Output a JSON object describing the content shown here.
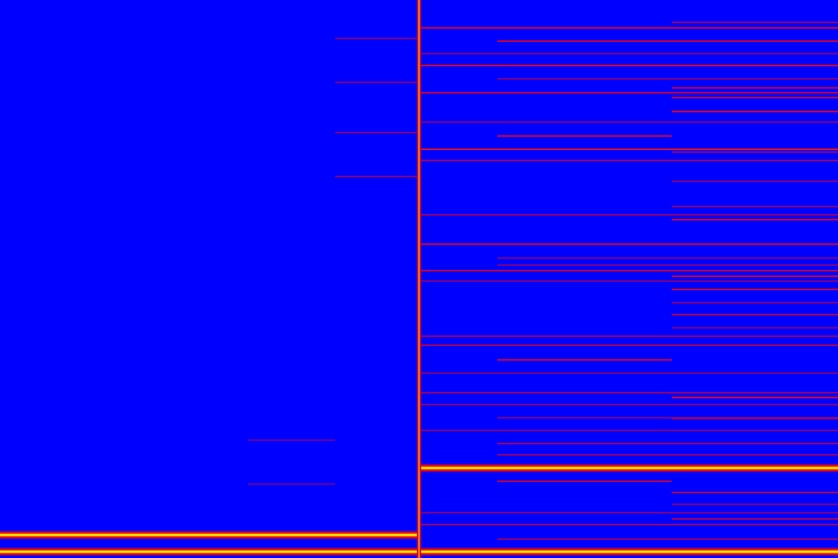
{
  "chart_data": {
    "type": "spectrogram",
    "xlim": [
      0,
      1200
    ],
    "ylim": [
      0,
      800
    ],
    "zlim": [
      0,
      1
    ],
    "tick_labels": false,
    "grid": false,
    "segments": [
      {
        "x0": 0,
        "x1": 600,
        "y": 33,
        "intensity": 1
      },
      {
        "x0": 0,
        "x1": 1200,
        "y": 9,
        "intensity": 1
      },
      {
        "x0": 600,
        "x1": 1200,
        "y": 129,
        "intensity": 1
      },
      {
        "x0": 480,
        "x1": 600,
        "y": 745,
        "intensity": 0.3
      },
      {
        "x0": 480,
        "x1": 600,
        "y": 682,
        "intensity": 0.3
      },
      {
        "x0": 480,
        "x1": 600,
        "y": 610,
        "intensity": 0.3
      },
      {
        "x0": 480,
        "x1": 600,
        "y": 547,
        "intensity": 0.3
      },
      {
        "x0": 355,
        "x1": 480,
        "y": 169,
        "intensity": 0.25
      },
      {
        "x0": 355,
        "x1": 480,
        "y": 106,
        "intensity": 0.25
      },
      {
        "x0": 600,
        "x1": 1200,
        "y": 760,
        "intensity": 0.5
      },
      {
        "x0": 600,
        "x1": 1200,
        "y": 706,
        "intensity": 0.5
      },
      {
        "x0": 600,
        "x1": 1200,
        "y": 667,
        "intensity": 0.45
      },
      {
        "x0": 600,
        "x1": 1200,
        "y": 586,
        "intensity": 0.55
      },
      {
        "x0": 600,
        "x1": 1200,
        "y": 450,
        "intensity": 0.5
      },
      {
        "x0": 600,
        "x1": 1200,
        "y": 412,
        "intensity": 0.45
      },
      {
        "x0": 600,
        "x1": 1200,
        "y": 723,
        "intensity": 0.3
      },
      {
        "x0": 600,
        "x1": 1200,
        "y": 625,
        "intensity": 0.3
      },
      {
        "x0": 600,
        "x1": 1200,
        "y": 570,
        "intensity": 0.35
      },
      {
        "x0": 600,
        "x1": 1200,
        "y": 492,
        "intensity": 0.35
      },
      {
        "x0": 600,
        "x1": 1200,
        "y": 397,
        "intensity": 0.3
      },
      {
        "x0": 600,
        "x1": 1200,
        "y": 318,
        "intensity": 0.35
      },
      {
        "x0": 600,
        "x1": 1200,
        "y": 305,
        "intensity": 0.4
      },
      {
        "x0": 600,
        "x1": 1200,
        "y": 265,
        "intensity": 0.3
      },
      {
        "x0": 600,
        "x1": 1200,
        "y": 237,
        "intensity": 0.35
      },
      {
        "x0": 600,
        "x1": 1200,
        "y": 220,
        "intensity": 0.3
      },
      {
        "x0": 600,
        "x1": 1200,
        "y": 183,
        "intensity": 0.3
      },
      {
        "x0": 600,
        "x1": 1200,
        "y": 65,
        "intensity": 0.3
      },
      {
        "x0": 600,
        "x1": 1200,
        "y": 48,
        "intensity": 0.35
      },
      {
        "x0": 712,
        "x1": 1200,
        "y": 741,
        "intensity": 0.5
      },
      {
        "x0": 712,
        "x1": 1200,
        "y": 687,
        "intensity": 0.3
      },
      {
        "x0": 712,
        "x1": 1200,
        "y": 430,
        "intensity": 0.3
      },
      {
        "x0": 712,
        "x1": 1200,
        "y": 420,
        "intensity": 0.3
      },
      {
        "x0": 712,
        "x1": 1200,
        "y": 201,
        "intensity": 0.3
      },
      {
        "x0": 712,
        "x1": 1200,
        "y": 164,
        "intensity": 0.35
      },
      {
        "x0": 712,
        "x1": 1200,
        "y": 148,
        "intensity": 0.35
      },
      {
        "x0": 712,
        "x1": 1200,
        "y": 27,
        "intensity": 0.35
      },
      {
        "x0": 712,
        "x1": 962,
        "y": 605,
        "intensity": 0.5
      },
      {
        "x0": 712,
        "x1": 962,
        "y": 284,
        "intensity": 0.5
      },
      {
        "x0": 712,
        "x1": 962,
        "y": 110,
        "intensity": 0.45
      },
      {
        "x0": 962,
        "x1": 1200,
        "y": 768,
        "intensity": 0.35
      },
      {
        "x0": 962,
        "x1": 1200,
        "y": 674,
        "intensity": 0.45
      },
      {
        "x0": 962,
        "x1": 1200,
        "y": 660,
        "intensity": 0.45
      },
      {
        "x0": 962,
        "x1": 1200,
        "y": 640,
        "intensity": 0.5
      },
      {
        "x0": 962,
        "x1": 1200,
        "y": 582,
        "intensity": 0.35
      },
      {
        "x0": 962,
        "x1": 1200,
        "y": 540,
        "intensity": 0.3
      },
      {
        "x0": 962,
        "x1": 1200,
        "y": 504,
        "intensity": 0.3
      },
      {
        "x0": 962,
        "x1": 1200,
        "y": 485,
        "intensity": 0.5
      },
      {
        "x0": 962,
        "x1": 1200,
        "y": 404,
        "intensity": 0.5
      },
      {
        "x0": 962,
        "x1": 1200,
        "y": 385,
        "intensity": 0.45
      },
      {
        "x0": 962,
        "x1": 1200,
        "y": 366,
        "intensity": 0.3
      },
      {
        "x0": 962,
        "x1": 1200,
        "y": 349,
        "intensity": 0.4
      },
      {
        "x0": 962,
        "x1": 1200,
        "y": 330,
        "intensity": 0.3
      },
      {
        "x0": 962,
        "x1": 1200,
        "y": 230,
        "intensity": 0.5
      },
      {
        "x0": 962,
        "x1": 1200,
        "y": 200,
        "intensity": 0.35
      },
      {
        "x0": 962,
        "x1": 1200,
        "y": 94,
        "intensity": 0.4
      },
      {
        "x0": 962,
        "x1": 1200,
        "y": 77,
        "intensity": 0.3
      },
      {
        "x0": 962,
        "x1": 1200,
        "y": 56,
        "intensity": 0.4
      }
    ],
    "transients": [
      {
        "x": 600,
        "intensity": 0.8
      }
    ]
  }
}
